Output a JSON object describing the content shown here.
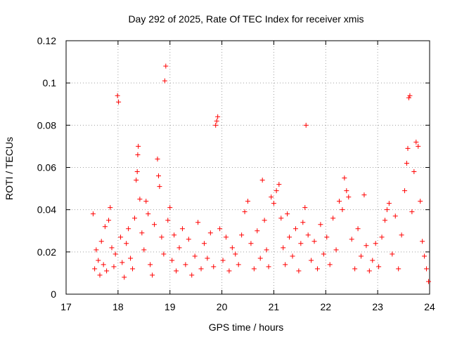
{
  "chart_data": {
    "type": "scatter",
    "title": "Day 292 of 2025, Rate Of TEC Index for receiver xmis",
    "xlabel": "GPS time / hours",
    "ylabel": "ROTI / TECUs",
    "xlim": [
      17,
      24
    ],
    "ylim": [
      0,
      0.12
    ],
    "xticks": [
      17,
      18,
      19,
      20,
      21,
      22,
      23,
      24
    ],
    "yticks": [
      0,
      0.02,
      0.04,
      0.06,
      0.08,
      0.1,
      0.12
    ],
    "xtick_labels": [
      "17",
      "18",
      "19",
      "20",
      "21",
      "22",
      "23",
      "24"
    ],
    "ytick_labels": [
      "0",
      "0.02",
      "0.04",
      "0.06",
      "0.08",
      "0.1",
      "0.12"
    ],
    "grid": true,
    "marker": "+",
    "series": [
      {
        "name": "ROTI",
        "color": "#ff0000",
        "points": [
          [
            17.52,
            0.038
          ],
          [
            17.55,
            0.012
          ],
          [
            17.58,
            0.021
          ],
          [
            17.62,
            0.016
          ],
          [
            17.65,
            0.009
          ],
          [
            17.68,
            0.025
          ],
          [
            17.72,
            0.014
          ],
          [
            17.75,
            0.032
          ],
          [
            17.78,
            0.011
          ],
          [
            17.82,
            0.035
          ],
          [
            17.85,
            0.041
          ],
          [
            17.88,
            0.022
          ],
          [
            17.92,
            0.013
          ],
          [
            17.95,
            0.019
          ],
          [
            17.99,
            0.094
          ],
          [
            18.01,
            0.091
          ],
          [
            18.05,
            0.027
          ],
          [
            18.08,
            0.015
          ],
          [
            18.12,
            0.008
          ],
          [
            18.16,
            0.024
          ],
          [
            18.2,
            0.031
          ],
          [
            18.24,
            0.017
          ],
          [
            18.28,
            0.012
          ],
          [
            18.32,
            0.036
          ],
          [
            18.35,
            0.054
          ],
          [
            18.37,
            0.058
          ],
          [
            18.38,
            0.066
          ],
          [
            18.39,
            0.07
          ],
          [
            18.42,
            0.045
          ],
          [
            18.46,
            0.029
          ],
          [
            18.5,
            0.021
          ],
          [
            18.54,
            0.044
          ],
          [
            18.58,
            0.038
          ],
          [
            18.62,
            0.014
          ],
          [
            18.66,
            0.009
          ],
          [
            18.7,
            0.033
          ],
          [
            18.76,
            0.064
          ],
          [
            18.78,
            0.056
          ],
          [
            18.8,
            0.051
          ],
          [
            18.84,
            0.027
          ],
          [
            18.88,
            0.019
          ],
          [
            18.9,
            0.101
          ],
          [
            18.92,
            0.108
          ],
          [
            18.96,
            0.035
          ],
          [
            19.0,
            0.041
          ],
          [
            19.04,
            0.016
          ],
          [
            19.08,
            0.028
          ],
          [
            19.12,
            0.011
          ],
          [
            19.18,
            0.022
          ],
          [
            19.24,
            0.031
          ],
          [
            19.3,
            0.014
          ],
          [
            19.36,
            0.026
          ],
          [
            19.42,
            0.009
          ],
          [
            19.48,
            0.018
          ],
          [
            19.54,
            0.034
          ],
          [
            19.6,
            0.012
          ],
          [
            19.66,
            0.024
          ],
          [
            19.72,
            0.017
          ],
          [
            19.78,
            0.029
          ],
          [
            19.84,
            0.013
          ],
          [
            19.88,
            0.08
          ],
          [
            19.9,
            0.082
          ],
          [
            19.92,
            0.084
          ],
          [
            19.96,
            0.031
          ],
          [
            20.02,
            0.016
          ],
          [
            20.08,
            0.027
          ],
          [
            20.14,
            0.011
          ],
          [
            20.2,
            0.022
          ],
          [
            20.26,
            0.019
          ],
          [
            20.32,
            0.014
          ],
          [
            20.38,
            0.028
          ],
          [
            20.44,
            0.039
          ],
          [
            20.5,
            0.044
          ],
          [
            20.56,
            0.024
          ],
          [
            20.62,
            0.012
          ],
          [
            20.68,
            0.03
          ],
          [
            20.74,
            0.017
          ],
          [
            20.78,
            0.054
          ],
          [
            20.82,
            0.035
          ],
          [
            20.86,
            0.021
          ],
          [
            20.9,
            0.013
          ],
          [
            20.95,
            0.046
          ],
          [
            21.0,
            0.043
          ],
          [
            21.05,
            0.049
          ],
          [
            21.1,
            0.052
          ],
          [
            21.14,
            0.036
          ],
          [
            21.18,
            0.022
          ],
          [
            21.22,
            0.014
          ],
          [
            21.26,
            0.038
          ],
          [
            21.3,
            0.027
          ],
          [
            21.36,
            0.018
          ],
          [
            21.42,
            0.031
          ],
          [
            21.48,
            0.011
          ],
          [
            21.52,
            0.024
          ],
          [
            21.56,
            0.034
          ],
          [
            21.6,
            0.041
          ],
          [
            21.62,
            0.08
          ],
          [
            21.66,
            0.028
          ],
          [
            21.72,
            0.016
          ],
          [
            21.78,
            0.025
          ],
          [
            21.84,
            0.012
          ],
          [
            21.9,
            0.033
          ],
          [
            21.96,
            0.019
          ],
          [
            22.02,
            0.027
          ],
          [
            22.08,
            0.014
          ],
          [
            22.14,
            0.036
          ],
          [
            22.2,
            0.021
          ],
          [
            22.26,
            0.044
          ],
          [
            22.32,
            0.04
          ],
          [
            22.36,
            0.055
          ],
          [
            22.4,
            0.049
          ],
          [
            22.44,
            0.046
          ],
          [
            22.5,
            0.026
          ],
          [
            22.56,
            0.012
          ],
          [
            22.62,
            0.031
          ],
          [
            22.68,
            0.018
          ],
          [
            22.74,
            0.047
          ],
          [
            22.78,
            0.023
          ],
          [
            22.84,
            0.011
          ],
          [
            22.9,
            0.016
          ],
          [
            22.96,
            0.024
          ],
          [
            23.02,
            0.013
          ],
          [
            23.08,
            0.027
          ],
          [
            23.14,
            0.035
          ],
          [
            23.18,
            0.04
          ],
          [
            23.22,
            0.043
          ],
          [
            23.28,
            0.019
          ],
          [
            23.34,
            0.037
          ],
          [
            23.4,
            0.012
          ],
          [
            23.46,
            0.028
          ],
          [
            23.52,
            0.049
          ],
          [
            23.56,
            0.062
          ],
          [
            23.58,
            0.069
          ],
          [
            23.6,
            0.093
          ],
          [
            23.62,
            0.094
          ],
          [
            23.66,
            0.039
          ],
          [
            23.7,
            0.058
          ],
          [
            23.74,
            0.072
          ],
          [
            23.78,
            0.07
          ],
          [
            23.82,
            0.044
          ],
          [
            23.86,
            0.025
          ],
          [
            23.9,
            0.018
          ],
          [
            23.94,
            0.012
          ],
          [
            23.98,
            0.006
          ]
        ]
      }
    ]
  }
}
